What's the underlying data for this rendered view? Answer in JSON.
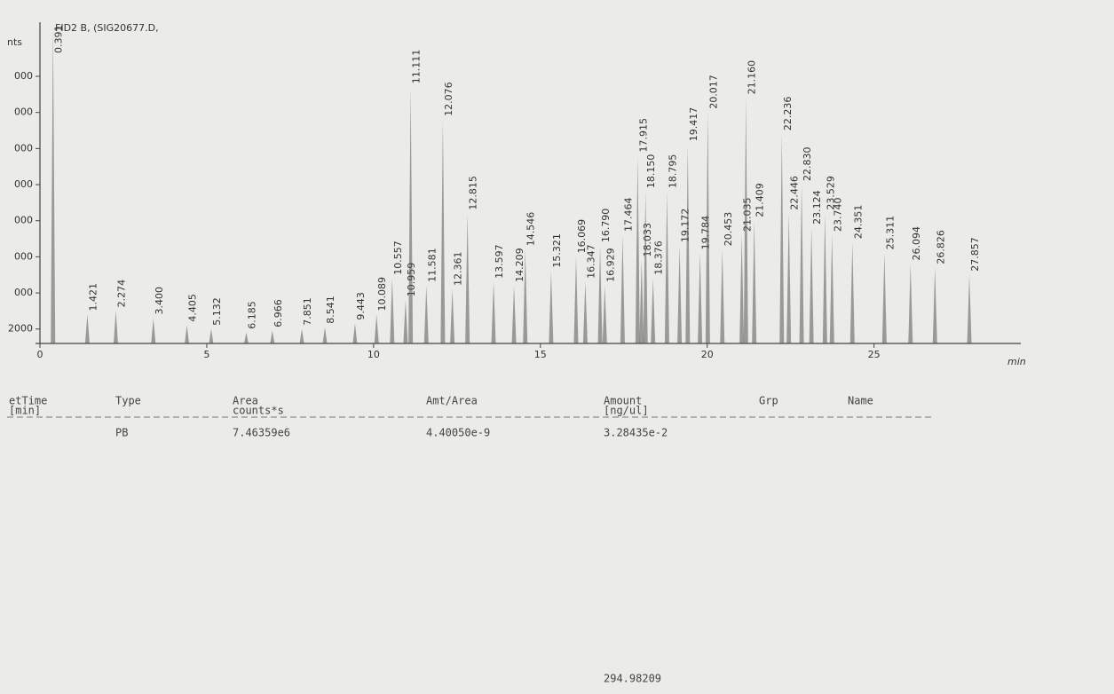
{
  "chart_data": {
    "type": "chromatogram",
    "title": "FID2 B, (SIG20677.D,",
    "y_label": "nts",
    "x_label": "min",
    "xlim": [
      0,
      29
    ],
    "xticks": [
      0,
      5,
      10,
      15,
      20,
      25
    ],
    "ylim": [
      1600,
      10500
    ],
    "yticks": [
      2000,
      {
        "value": 3000,
        "label": "000"
      },
      {
        "value": 4000,
        "label": "000"
      },
      {
        "value": 5000,
        "label": "000"
      },
      {
        "value": 6000,
        "label": "000"
      },
      {
        "value": 7000,
        "label": "000"
      },
      {
        "value": 8000,
        "label": "000"
      },
      {
        "value": 9000,
        "label": "000"
      }
    ],
    "color": "#555555",
    "x": [
      0.391,
      1.421,
      2.274,
      3.4,
      4.405,
      5.132,
      6.185,
      6.966,
      7.851,
      8.541,
      9.443,
      10.089,
      10.557,
      10.959,
      11.111,
      11.581,
      12.076,
      12.361,
      12.815,
      13.597,
      14.209,
      14.546,
      15.321,
      16.069,
      16.347,
      16.79,
      16.929,
      17.464,
      17.915,
      18.033,
      18.15,
      18.376,
      18.795,
      19.172,
      19.417,
      19.784,
      20.017,
      20.453,
      21.035,
      21.16,
      21.409,
      22.236,
      22.446,
      22.83,
      23.124,
      23.529,
      23.74,
      24.351,
      25.311,
      26.094,
      26.826,
      27.857
    ],
    "peak_labels": [
      "0.391",
      "1.421",
      "2.274",
      "3.400",
      "4.405",
      "5.132",
      "6.185",
      "6.966",
      "7.851",
      "8.541",
      "9.443",
      "10.089",
      "10.557",
      "10.959",
      "11.111",
      "11.581",
      "12.076",
      "12.361",
      "12.815",
      "13.597",
      "14.209",
      "14.546",
      "15.321",
      "16.069",
      "16.347",
      "16.790",
      "16.929",
      "17.464",
      "17.915",
      "18.033",
      "18.150",
      "18.376",
      "18.795",
      "19.172",
      "19.417",
      "19.784",
      "20.017",
      "20.453",
      "21.035",
      "21.160",
      "21.409",
      "22.236",
      "22.446",
      "22.830",
      "23.124",
      "23.529",
      "23.740",
      "24.351",
      "25.311",
      "26.094",
      "26.826",
      "27.857"
    ],
    "values": [
      10400,
      2400,
      2500,
      2300,
      2100,
      2000,
      1900,
      1950,
      2000,
      2050,
      2150,
      2400,
      3400,
      2800,
      8700,
      3200,
      7800,
      3100,
      5200,
      3300,
      3200,
      4200,
      3600,
      4000,
      3300,
      4300,
      3200,
      4600,
      6800,
      3900,
      5800,
      3400,
      5800,
      4300,
      7100,
      4100,
      8000,
      4200,
      4600,
      8400,
      5000,
      7400,
      5200,
      6000,
      4800,
      5200,
      4600,
      4400,
      4100,
      3800,
      3700,
      3500
    ]
  },
  "table": {
    "headers": [
      [
        "etTime",
        "[min]"
      ],
      [
        "Type"
      ],
      [
        "Area",
        "counts*s"
      ],
      [
        "Amt/Area"
      ],
      [
        "Amount",
        "[ng/ul]"
      ],
      [
        "Grp"
      ],
      [
        "Name"
      ]
    ],
    "rows": [
      [
        "",
        "PB",
        "7.46359e6",
        "4.40050e-9",
        "3.28435e-2",
        "",
        ""
      ]
    ],
    "total": "294.98209"
  }
}
